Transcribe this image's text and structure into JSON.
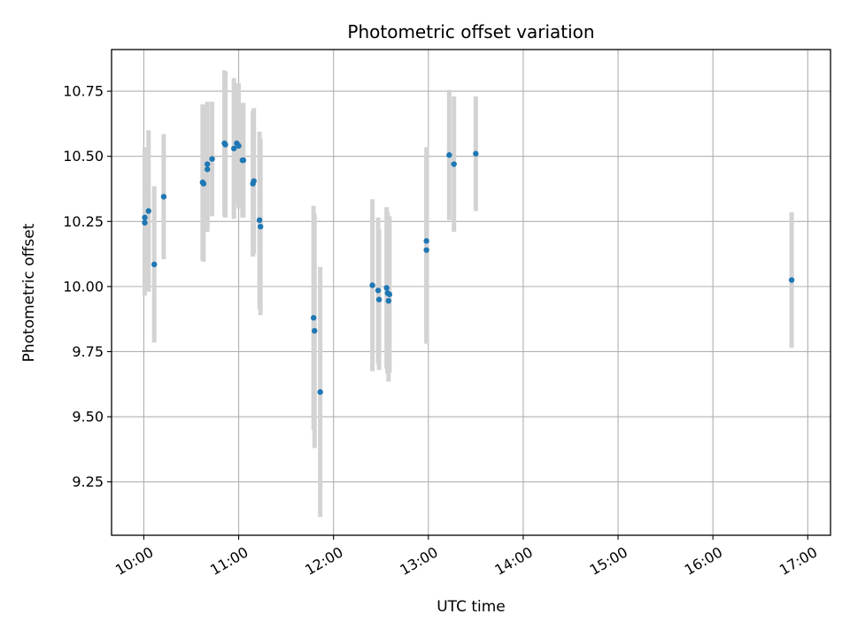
{
  "chart_data": {
    "type": "scatter",
    "title": "Photometric offset variation",
    "xlabel": "UTC time",
    "ylabel": "Photometric offset",
    "x_unit": "hours",
    "xlim": [
      9.66,
      17.24
    ],
    "ylim": [
      9.045,
      10.91
    ],
    "grid": true,
    "x_ticks": [
      {
        "value": 10,
        "label": "10:00"
      },
      {
        "value": 11,
        "label": "11:00"
      },
      {
        "value": 12,
        "label": "12:00"
      },
      {
        "value": 13,
        "label": "13:00"
      },
      {
        "value": 14,
        "label": "14:00"
      },
      {
        "value": 15,
        "label": "15:00"
      },
      {
        "value": 16,
        "label": "16:00"
      },
      {
        "value": 17,
        "label": "17:00"
      }
    ],
    "y_ticks": [
      {
        "value": 9.25,
        "label": "9.25"
      },
      {
        "value": 9.5,
        "label": "9.50"
      },
      {
        "value": 9.75,
        "label": "9.75"
      },
      {
        "value": 10.0,
        "label": "10.00"
      },
      {
        "value": 10.25,
        "label": "10.25"
      },
      {
        "value": 10.5,
        "label": "10.50"
      },
      {
        "value": 10.75,
        "label": "10.75"
      }
    ],
    "colors": {
      "points": "#1f77b4",
      "errorbars": "#d3d3d3",
      "grid": "#b0b0b0"
    },
    "points": [
      {
        "x": 10.01,
        "y": 10.265,
        "err": 0.27
      },
      {
        "x": 10.01,
        "y": 10.245,
        "err": 0.28
      },
      {
        "x": 10.05,
        "y": 10.29,
        "err": 0.31
      },
      {
        "x": 10.11,
        "y": 10.085,
        "err": 0.3
      },
      {
        "x": 10.21,
        "y": 10.345,
        "err": 0.24
      },
      {
        "x": 10.62,
        "y": 10.4,
        "err": 0.3
      },
      {
        "x": 10.63,
        "y": 10.395,
        "err": 0.3
      },
      {
        "x": 10.67,
        "y": 10.47,
        "err": 0.24
      },
      {
        "x": 10.67,
        "y": 10.45,
        "err": 0.24
      },
      {
        "x": 10.72,
        "y": 10.49,
        "err": 0.22
      },
      {
        "x": 10.85,
        "y": 10.55,
        "err": 0.28
      },
      {
        "x": 10.86,
        "y": 10.545,
        "err": 0.28
      },
      {
        "x": 10.95,
        "y": 10.53,
        "err": 0.27
      },
      {
        "x": 10.98,
        "y": 10.55,
        "err": 0.23
      },
      {
        "x": 11.0,
        "y": 10.54,
        "err": 0.24
      },
      {
        "x": 11.04,
        "y": 10.485,
        "err": 0.22
      },
      {
        "x": 11.05,
        "y": 10.485,
        "err": 0.22
      },
      {
        "x": 11.15,
        "y": 10.395,
        "err": 0.28
      },
      {
        "x": 11.16,
        "y": 10.405,
        "err": 0.28
      },
      {
        "x": 11.22,
        "y": 10.255,
        "err": 0.34
      },
      {
        "x": 11.23,
        "y": 10.23,
        "err": 0.34
      },
      {
        "x": 11.79,
        "y": 9.88,
        "err": 0.43
      },
      {
        "x": 11.8,
        "y": 9.83,
        "err": 0.45
      },
      {
        "x": 11.86,
        "y": 9.595,
        "err": 0.48
      },
      {
        "x": 12.41,
        "y": 10.005,
        "err": 0.33
      },
      {
        "x": 12.47,
        "y": 9.985,
        "err": 0.28
      },
      {
        "x": 12.48,
        "y": 9.95,
        "err": 0.27
      },
      {
        "x": 12.56,
        "y": 9.995,
        "err": 0.31
      },
      {
        "x": 12.57,
        "y": 9.975,
        "err": 0.31
      },
      {
        "x": 12.58,
        "y": 9.945,
        "err": 0.31
      },
      {
        "x": 12.59,
        "y": 9.97,
        "err": 0.3
      },
      {
        "x": 12.98,
        "y": 10.175,
        "err": 0.36
      },
      {
        "x": 12.98,
        "y": 10.14,
        "err": 0.36
      },
      {
        "x": 13.22,
        "y": 10.505,
        "err": 0.25
      },
      {
        "x": 13.27,
        "y": 10.47,
        "err": 0.26
      },
      {
        "x": 13.5,
        "y": 10.51,
        "err": 0.22
      },
      {
        "x": 16.83,
        "y": 10.025,
        "err": 0.26
      }
    ]
  }
}
